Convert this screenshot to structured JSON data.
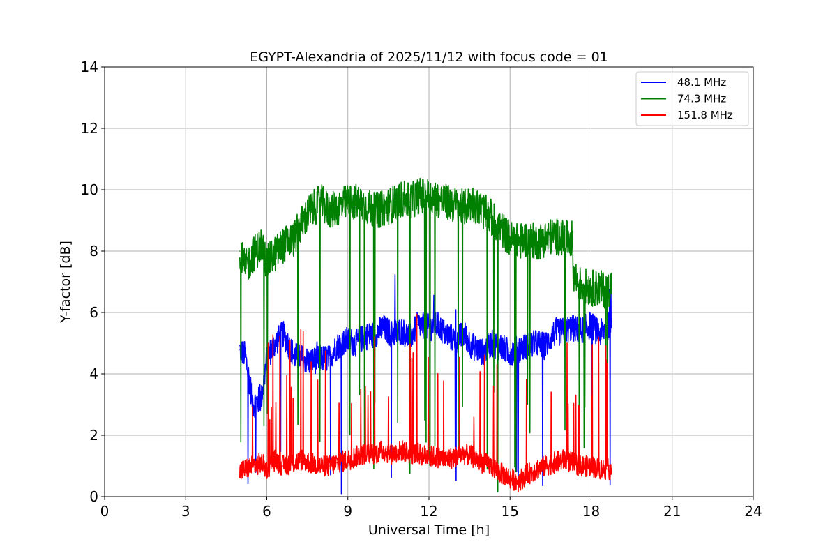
{
  "chart_data": {
    "type": "line",
    "title": "EGYPT-Alexandria of 2025/11/12 with focus code = 01",
    "xlabel": "Universal Time [h]",
    "ylabel": "Y-factor [dB]",
    "xlim": [
      0,
      24
    ],
    "ylim": [
      0,
      14
    ],
    "xticks": [
      0,
      3,
      6,
      9,
      12,
      15,
      18,
      21,
      24
    ],
    "yticks": [
      0,
      2,
      4,
      6,
      8,
      10,
      12,
      14
    ],
    "grid": true,
    "legend_position": "top-right",
    "series": [
      {
        "name": "48.1 MHz",
        "legend_label": " 48.1 MHz",
        "color": "#0000ff",
        "x": [
          5.0,
          5.2,
          5.5,
          5.8,
          6.0,
          6.3,
          6.6,
          7.0,
          7.3,
          7.6,
          8.0,
          8.3,
          8.6,
          9.0,
          9.3,
          9.6,
          10.0,
          10.3,
          10.6,
          11.0,
          11.3,
          11.6,
          12.0,
          12.3,
          12.6,
          13.0,
          13.3,
          13.6,
          14.0,
          14.3,
          14.6,
          15.0,
          15.3,
          15.6,
          16.0,
          16.3,
          16.6,
          17.0,
          17.3,
          17.6,
          18.0,
          18.3,
          18.6,
          18.75
        ],
        "values": [
          4.8,
          4.6,
          3.0,
          3.2,
          4.5,
          5.0,
          5.3,
          4.6,
          4.5,
          4.4,
          4.5,
          4.5,
          4.9,
          5.1,
          5.0,
          5.2,
          5.3,
          5.5,
          5.3,
          5.4,
          5.2,
          5.6,
          5.5,
          5.6,
          5.3,
          5.1,
          5.3,
          4.9,
          4.7,
          5.0,
          4.9,
          4.7,
          4.8,
          4.9,
          5.0,
          4.9,
          5.3,
          5.4,
          5.5,
          5.4,
          5.6,
          5.3,
          5.5,
          5.8
        ]
      },
      {
        "name": "74.3 MHz",
        "legend_label": " 74.3 MHz",
        "color": "#008000",
        "x": [
          5.0,
          5.2,
          5.5,
          5.8,
          6.0,
          6.3,
          6.6,
          7.0,
          7.3,
          7.6,
          8.0,
          8.3,
          8.6,
          9.0,
          9.3,
          9.6,
          10.0,
          10.3,
          10.6,
          11.0,
          11.3,
          11.6,
          12.0,
          12.3,
          12.6,
          13.0,
          13.3,
          13.6,
          14.0,
          14.3,
          14.6,
          15.0,
          15.3,
          15.6,
          16.0,
          16.3,
          16.6,
          17.0,
          17.3,
          17.35,
          17.6,
          18.0,
          18.3,
          18.6,
          18.75
        ],
        "values": [
          8.0,
          7.4,
          7.9,
          8.2,
          7.6,
          7.9,
          8.2,
          8.4,
          8.9,
          9.3,
          9.6,
          9.3,
          9.4,
          9.6,
          9.6,
          9.5,
          9.3,
          9.4,
          9.5,
          9.7,
          9.6,
          9.8,
          9.8,
          9.7,
          9.6,
          9.5,
          9.4,
          9.6,
          9.3,
          9.1,
          8.8,
          8.4,
          8.3,
          8.4,
          8.3,
          8.4,
          8.5,
          8.4,
          8.4,
          7.2,
          6.9,
          6.8,
          6.8,
          6.7,
          6.9
        ]
      },
      {
        "name": "151.8 MHz",
        "legend_label": "151.8 MHz",
        "color": "#ff0000",
        "x": [
          5.0,
          5.2,
          5.5,
          5.8,
          6.0,
          6.3,
          6.6,
          7.0,
          7.3,
          7.6,
          8.0,
          8.3,
          8.6,
          9.0,
          9.3,
          9.6,
          10.0,
          10.3,
          10.6,
          11.0,
          11.3,
          11.6,
          12.0,
          12.3,
          12.6,
          13.0,
          13.3,
          13.6,
          14.0,
          14.3,
          14.6,
          15.0,
          15.3,
          15.6,
          16.0,
          16.3,
          16.6,
          17.0,
          17.3,
          17.6,
          18.0,
          18.3,
          18.6,
          18.75
        ],
        "values": [
          0.8,
          0.9,
          1.0,
          1.1,
          0.9,
          1.2,
          1.0,
          1.1,
          1.2,
          1.1,
          1.0,
          1.0,
          1.1,
          1.2,
          1.3,
          1.4,
          1.4,
          1.5,
          1.4,
          1.5,
          1.4,
          1.4,
          1.3,
          1.3,
          1.2,
          1.3,
          1.4,
          1.3,
          1.1,
          1.0,
          0.8,
          0.6,
          0.5,
          0.7,
          0.9,
          1.0,
          1.1,
          1.2,
          1.1,
          1.0,
          1.0,
          0.9,
          0.9,
          0.9
        ]
      }
    ]
  }
}
